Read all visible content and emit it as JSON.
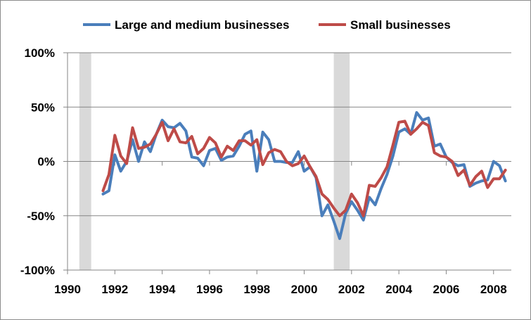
{
  "chart_data": {
    "type": "line",
    "title": "",
    "xlabel": "",
    "ylabel": "",
    "xlim": [
      1990,
      2008.75
    ],
    "ylim": [
      -100,
      100
    ],
    "x_ticks": [
      1990,
      1992,
      1994,
      1996,
      1998,
      2000,
      2002,
      2004,
      2006,
      2008
    ],
    "x_tick_labels": [
      "1990",
      "1992",
      "1994",
      "1996",
      "1998",
      "2000",
      "2002",
      "2004",
      "2006",
      "2008"
    ],
    "y_ticks": [
      -100,
      -50,
      0,
      50,
      100
    ],
    "y_tick_labels": [
      "-100%",
      "-50%",
      "0%",
      "50%",
      "100%"
    ],
    "grid": "horizontal",
    "legend_position": "top",
    "recession_bands": [
      [
        1990.5,
        1991.0
      ],
      [
        2001.25,
        2001.92
      ]
    ],
    "x": [
      1991.5,
      1991.75,
      1992.0,
      1992.25,
      1992.5,
      1992.75,
      1993.0,
      1993.25,
      1993.5,
      1993.75,
      1994.0,
      1994.25,
      1994.5,
      1994.75,
      1995.0,
      1995.25,
      1995.5,
      1995.75,
      1996.0,
      1996.25,
      1996.5,
      1996.75,
      1997.0,
      1997.25,
      1997.5,
      1997.75,
      1998.0,
      1998.25,
      1998.5,
      1998.75,
      1999.0,
      1999.25,
      1999.5,
      1999.75,
      2000.0,
      2000.25,
      2000.5,
      2000.75,
      2001.0,
      2001.25,
      2001.5,
      2001.75,
      2002.0,
      2002.25,
      2002.5,
      2002.75,
      2003.0,
      2003.25,
      2003.5,
      2003.75,
      2004.0,
      2004.25,
      2004.5,
      2004.75,
      2005.0,
      2005.25,
      2005.5,
      2005.75,
      2006.0,
      2006.25,
      2006.5,
      2006.75,
      2007.0,
      2007.25,
      2007.5,
      2007.75,
      2008.0,
      2008.25,
      2008.5
    ],
    "series": [
      {
        "name": "Large and medium businesses",
        "color": "#4a7ebb",
        "values": [
          -30,
          -27,
          6,
          -9,
          0,
          20,
          0,
          18,
          9,
          25,
          38,
          32,
          31,
          35,
          28,
          4,
          3,
          -4,
          10,
          12,
          1,
          4,
          5,
          14,
          25,
          28,
          -9,
          27,
          20,
          0,
          0,
          -1,
          -1,
          9,
          -9,
          -5,
          -15,
          -50,
          -40,
          -55,
          -71,
          -48,
          -37,
          -45,
          -54,
          -33,
          -40,
          -25,
          -12,
          5,
          27,
          30,
          25,
          45,
          38,
          40,
          14,
          16,
          4,
          -1,
          -4,
          -3,
          -23,
          -20,
          -18,
          -17,
          0,
          -4,
          -18
        ]
      },
      {
        "name": "Small businesses",
        "color": "#be4b48",
        "values": [
          -27,
          -12,
          24,
          5,
          -2,
          31,
          12,
          13,
          16,
          25,
          36,
          19,
          30,
          18,
          17,
          23,
          7,
          12,
          22,
          17,
          4,
          14,
          10,
          19,
          19,
          15,
          20,
          -3,
          8,
          11,
          9,
          0,
          -4,
          -2,
          5,
          -5,
          -14,
          -30,
          -35,
          -43,
          -50,
          -45,
          -30,
          -38,
          -50,
          -22,
          -23,
          -15,
          -5,
          15,
          36,
          37,
          25,
          30,
          36,
          33,
          8,
          5,
          4,
          0,
          -13,
          -8,
          -22,
          -14,
          -9,
          -24,
          -16,
          -16,
          -8
        ]
      }
    ]
  }
}
